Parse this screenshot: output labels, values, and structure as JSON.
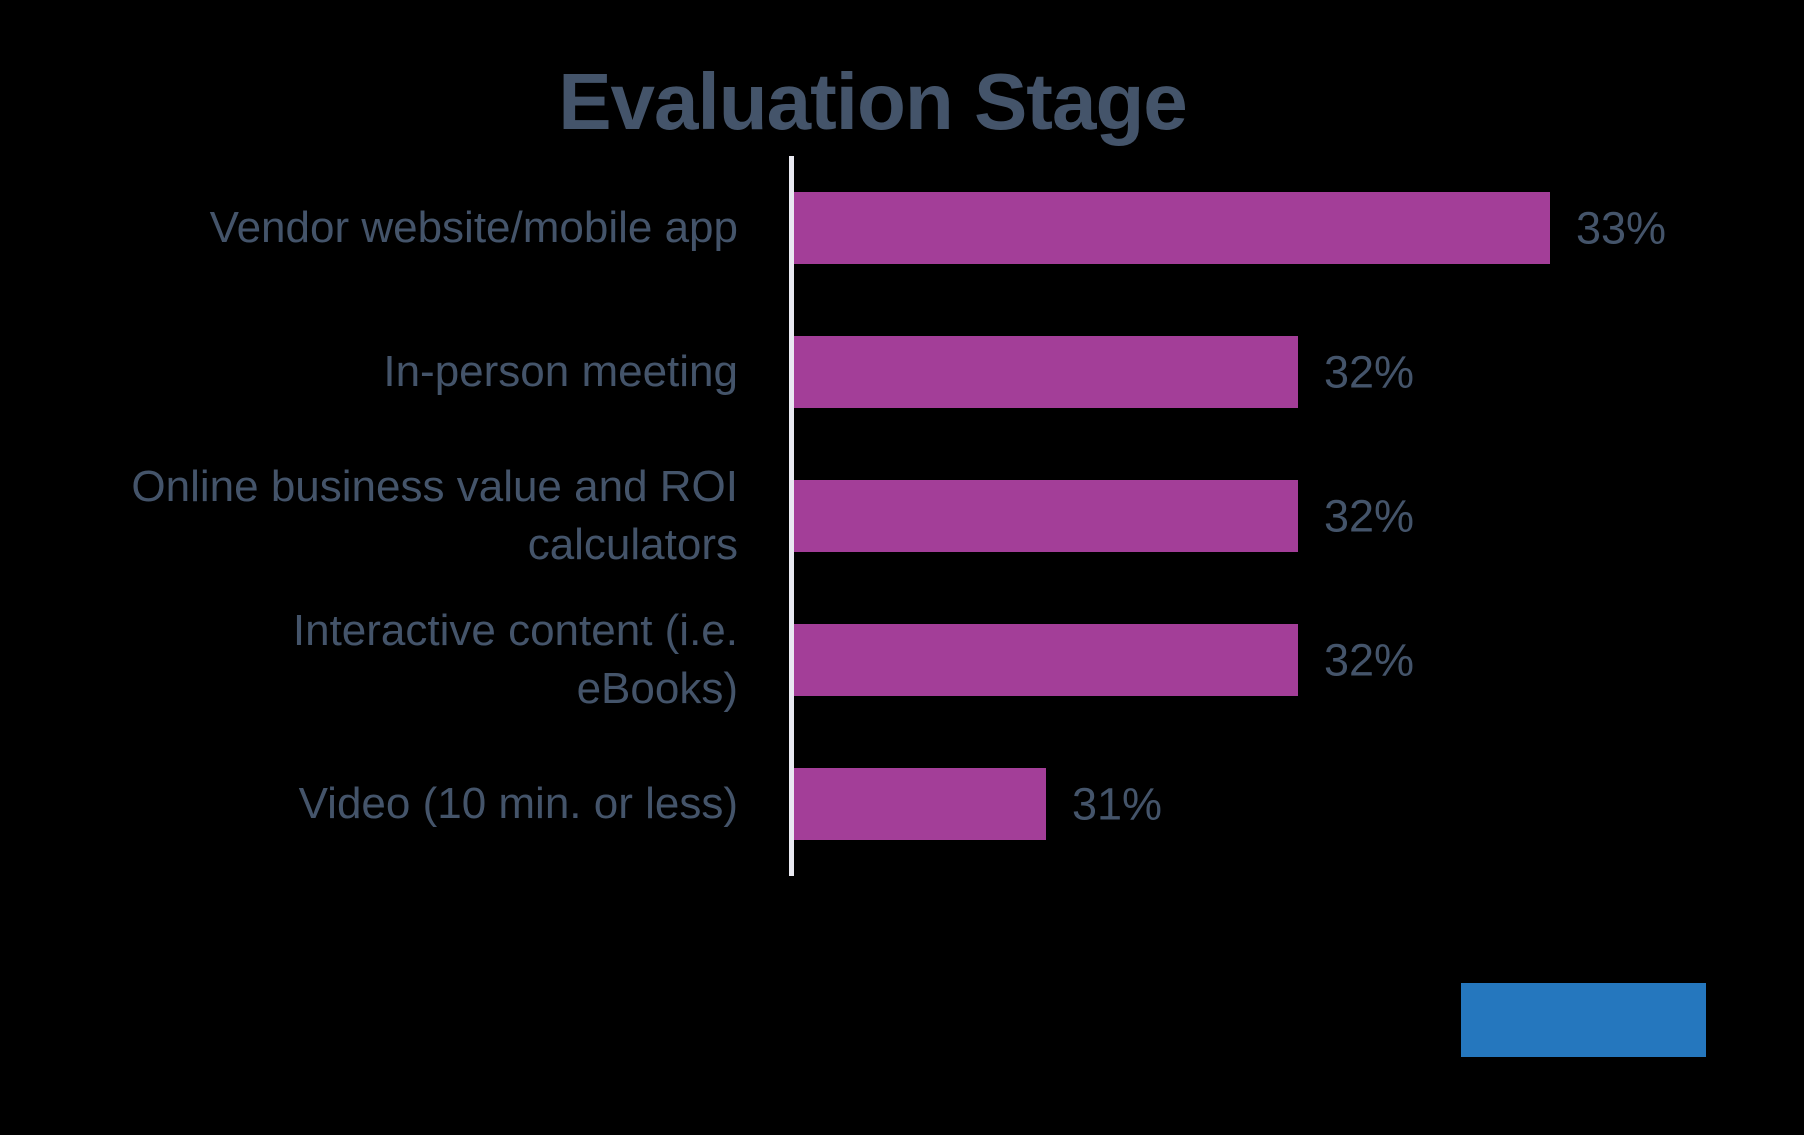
{
  "title": "Evaluation Stage",
  "colors": {
    "background": "#000000",
    "bar": "#A33E98",
    "text": "#44546A",
    "axis_line": "#E9E9F1",
    "legend_swatch": "#2577BE"
  },
  "chart_data": {
    "type": "bar",
    "orientation": "horizontal",
    "title": "Evaluation Stage",
    "categories": [
      "Vendor website/mobile app",
      "In-person meeting",
      "Online business value and ROI\ncalculators",
      "Interactive content (i.e.\neBooks)",
      "Video (10 min. or less)"
    ],
    "values": [
      33,
      32,
      32,
      32,
      31
    ],
    "value_labels": [
      "33%",
      "32%",
      "32%",
      "32%",
      "31%"
    ],
    "unit": "%",
    "xlim": [
      30,
      34
    ],
    "grid": false,
    "legend_position": "none",
    "data_labels": "outside-end"
  }
}
